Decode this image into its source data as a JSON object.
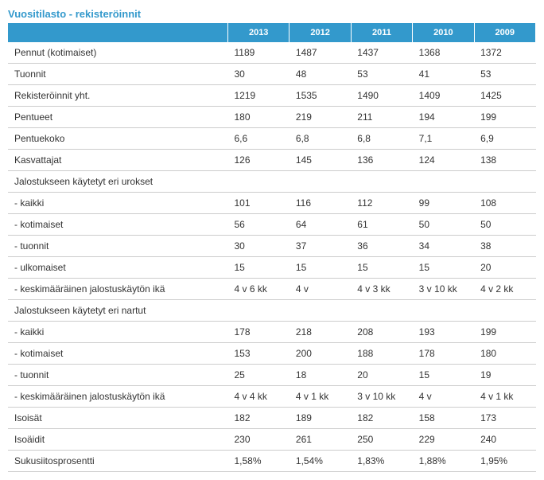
{
  "title": "Vuositilasto - rekisteröinnit",
  "colors": {
    "header_bg": "#3399cc",
    "header_fg": "#ffffff",
    "title_fg": "#3399cc",
    "row_border": "#cccccc",
    "text": "#333333"
  },
  "table": {
    "type": "table",
    "columns": [
      "",
      "2013",
      "2012",
      "2011",
      "2010",
      "2009"
    ],
    "rows": [
      [
        "Pennut (kotimaiset)",
        "1189",
        "1487",
        "1437",
        "1368",
        "1372"
      ],
      [
        "Tuonnit",
        "30",
        "48",
        "53",
        "41",
        "53"
      ],
      [
        "Rekisteröinnit yht.",
        "1219",
        "1535",
        "1490",
        "1409",
        "1425"
      ],
      [
        "Pentueet",
        "180",
        "219",
        "211",
        "194",
        "199"
      ],
      [
        "Pentuekoko",
        "6,6",
        "6,8",
        "6,8",
        "7,1",
        "6,9"
      ],
      [
        "Kasvattajat",
        "126",
        "145",
        "136",
        "124",
        "138"
      ],
      [
        "Jalostukseen käytetyt eri urokset",
        "",
        "",
        "",
        "",
        ""
      ],
      [
        "- kaikki",
        "101",
        "116",
        "112",
        "99",
        "108"
      ],
      [
        "- kotimaiset",
        "56",
        "64",
        "61",
        "50",
        "50"
      ],
      [
        "- tuonnit",
        "30",
        "37",
        "36",
        "34",
        "38"
      ],
      [
        "- ulkomaiset",
        "15",
        "15",
        "15",
        "15",
        "20"
      ],
      [
        "- keskimääräinen jalostuskäytön ikä",
        "4 v 6 kk",
        "4 v",
        "4 v 3 kk",
        "3 v 10 kk",
        "4 v 2 kk"
      ],
      [
        "Jalostukseen käytetyt eri nartut",
        "",
        "",
        "",
        "",
        ""
      ],
      [
        "- kaikki",
        "178",
        "218",
        "208",
        "193",
        "199"
      ],
      [
        "- kotimaiset",
        "153",
        "200",
        "188",
        "178",
        "180"
      ],
      [
        "- tuonnit",
        "25",
        "18",
        "20",
        "15",
        "19"
      ],
      [
        "- keskimääräinen jalostuskäytön ikä",
        "4 v 4 kk",
        "4 v 1 kk",
        "3 v 10 kk",
        "4 v",
        "4 v 1 kk"
      ],
      [
        "Isoisät",
        "182",
        "189",
        "182",
        "158",
        "173"
      ],
      [
        "Isoäidit",
        "230",
        "261",
        "250",
        "229",
        "240"
      ],
      [
        "Sukusiitosprosentti",
        "1,58%",
        "1,54%",
        "1,83%",
        "1,88%",
        "1,95%"
      ]
    ]
  }
}
